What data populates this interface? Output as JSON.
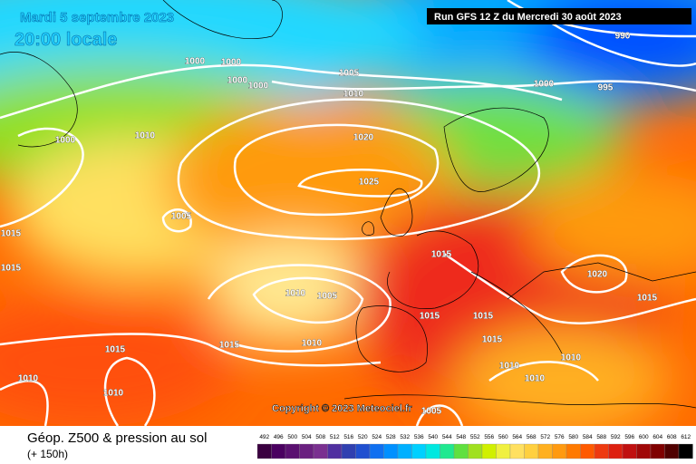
{
  "header": {
    "date": "Mardi 5 septembre 2023",
    "time": "20:00 locale",
    "run": "Run GFS 12 Z du Mercredi 30 août 2023"
  },
  "isobar_labels": [
    1000,
    1000,
    1000,
    1000,
    1005,
    1010,
    990,
    1000,
    995,
    1000,
    1010,
    1020,
    1025,
    1005,
    1015,
    1015,
    1015,
    1010,
    1005,
    1020,
    1015,
    1015,
    1015,
    1015,
    1015,
    1010,
    1015,
    1010,
    1010,
    1010,
    1010,
    1010,
    1005
  ],
  "copyright": "Copyright © 2023 Meteociel.fr",
  "footer": {
    "title": "Géop. Z500 & pression au sol",
    "lead": "(+ 150h)"
  },
  "legend": {
    "ticks": [
      492,
      496,
      500,
      504,
      508,
      512,
      516,
      520,
      524,
      528,
      532,
      536,
      540,
      544,
      548,
      552,
      556,
      560,
      564,
      568,
      572,
      576,
      580,
      584,
      588,
      592,
      596,
      600,
      604,
      608,
      612
    ]
  }
}
